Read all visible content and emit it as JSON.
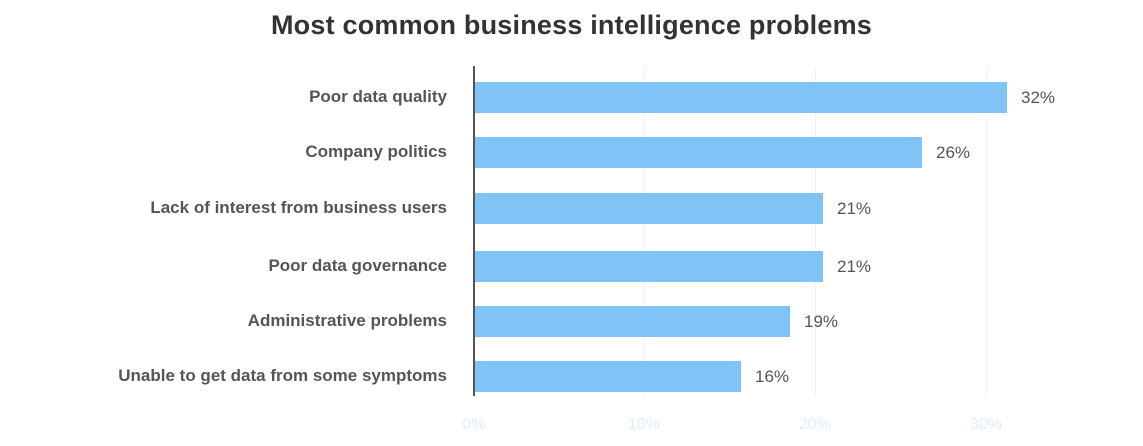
{
  "chart_data": {
    "type": "bar",
    "orientation": "horizontal",
    "title": "Most common business intelligence problems",
    "xlabel": "",
    "ylabel": "",
    "xlim": [
      0,
      32
    ],
    "grid": true,
    "categories": [
      "Poor data quality",
      "Company politics",
      "Lack of interest from business users",
      "Poor data governance",
      "Administrative problems",
      "Unable to get data from some symptoms"
    ],
    "values": [
      32,
      26,
      21,
      21,
      19,
      16
    ],
    "value_labels": [
      "32%",
      "26%",
      "21%",
      "21%",
      "19%",
      "16%"
    ],
    "bar_lengths_estimated": [
      31.2,
      26.2,
      20.4,
      20.4,
      18.5,
      15.6
    ],
    "x_ticks": [
      "0%",
      "10%",
      "20%",
      "30%"
    ],
    "x_tick_values": [
      0,
      10,
      20,
      30
    ],
    "bar_color": "#80c3f7"
  },
  "title": "Most common business intelligence problems",
  "bars": [
    {
      "label": "Poor data quality",
      "value": "32%"
    },
    {
      "label": "Company politics",
      "value": "26%"
    },
    {
      "label": "Lack of interest from business users",
      "value": "21%"
    },
    {
      "label": "Poor data governance",
      "value": "21%"
    },
    {
      "label": "Administrative problems",
      "value": "19%"
    },
    {
      "label": "Unable to get data from some symptoms",
      "value": "16%"
    }
  ],
  "ticks": [
    "0%",
    "10%",
    "20%",
    "30%"
  ]
}
